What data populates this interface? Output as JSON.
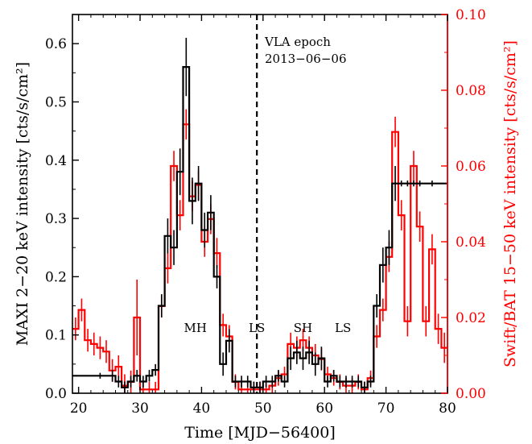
{
  "chart_data": {
    "type": "line",
    "xlabel": "Time [MJD−56400]",
    "ylabel_left": "MAXI 2−20 keV intensity [cts/s/cm²]",
    "ylabel_right": "Swift/BAT 15−50 keV intensity [cts/s/cm²]",
    "xlim": [
      19,
      80
    ],
    "ylim_left": [
      0,
      0.65
    ],
    "ylim_right": [
      0,
      0.1
    ],
    "x_ticks": [
      20,
      30,
      40,
      50,
      60,
      70,
      80
    ],
    "y_ticks_left": [
      0.0,
      0.1,
      0.2,
      0.3,
      0.4,
      0.5,
      0.6
    ],
    "y_ticks_right": [
      0.0,
      0.02,
      0.04,
      0.06,
      0.08,
      0.1
    ],
    "x_tick_labels": [
      "20",
      "30",
      "40",
      "50",
      "60",
      "70",
      "80"
    ],
    "y_tick_labels_left": [
      "0.0",
      "0.1",
      "0.2",
      "0.3",
      "0.4",
      "0.5",
      "0.6"
    ],
    "y_tick_labels_right": [
      "0.00",
      "0.02",
      "0.04",
      "0.06",
      "0.08",
      "0.10"
    ],
    "colors": {
      "maxi": "#000000",
      "bat": "#ff0000",
      "right_axis": "#ff0000"
    },
    "vline": {
      "x": 49,
      "label_line1": "VLA epoch",
      "label_line2": "2013−06−06"
    },
    "states": [
      {
        "label": "MH",
        "x": 39
      },
      {
        "label": "LS",
        "x": 49
      },
      {
        "label": "SH",
        "x": 56.5
      },
      {
        "label": "LS",
        "x": 63
      }
    ],
    "series": [
      {
        "name": "MAXI 2−20 keV",
        "axis": "left",
        "x": [
          23.5,
          25.5,
          26.5,
          27.5,
          28.5,
          29.5,
          30.5,
          31.5,
          32.5,
          33.5,
          34.5,
          35.5,
          36.5,
          37.5,
          38.5,
          39.5,
          40.5,
          41.5,
          42.5,
          43.5,
          44.5,
          45.5,
          46.5,
          47.5,
          48.5,
          49.5,
          50.5,
          51.5,
          52.5,
          53.5,
          54.5,
          55.5,
          56.5,
          57.5,
          58.5,
          59.5,
          60.5,
          61.5,
          62.5,
          63.5,
          64.5,
          65.5,
          66.5,
          67.5,
          68.5,
          69.5,
          70.5,
          71.5,
          72.5,
          73.5,
          74.5,
          75.5,
          77.5
        ],
        "y": [
          0.03,
          0.03,
          0.02,
          0.01,
          0.02,
          0.03,
          0.02,
          0.03,
          0.04,
          0.15,
          0.27,
          0.25,
          0.38,
          0.56,
          0.33,
          0.36,
          0.28,
          0.31,
          0.2,
          0.05,
          0.09,
          0.02,
          0.02,
          0.02,
          0.01,
          0.01,
          0.02,
          0.02,
          0.03,
          0.02,
          0.06,
          0.07,
          0.06,
          0.07,
          0.05,
          0.06,
          0.02,
          0.03,
          0.02,
          0.02,
          0.02,
          0.02,
          0.01,
          0.02,
          0.15,
          0.22,
          0.25,
          0.36,
          0.36,
          0.36,
          0.36,
          0.36,
          0.36
        ],
        "y_errors": [
          0.005,
          0.01,
          0.01,
          0.01,
          0.01,
          0.01,
          0.01,
          0.01,
          0.01,
          0.02,
          0.03,
          0.03,
          0.04,
          0.05,
          0.04,
          0.03,
          0.03,
          0.03,
          0.02,
          0.02,
          0.02,
          0.01,
          0.01,
          0.01,
          0.01,
          0.01,
          0.01,
          0.01,
          0.01,
          0.01,
          0.02,
          0.02,
          0.02,
          0.02,
          0.02,
          0.02,
          0.01,
          0.01,
          0.01,
          0.01,
          0.01,
          0.01,
          0.01,
          0.01,
          0.02,
          0.03,
          0.03,
          0.03,
          0.005,
          0.005,
          0.005,
          0.005,
          0.005
        ]
      },
      {
        "name": "Swift/BAT 15−50 keV",
        "axis": "right",
        "x": [
          19.5,
          20.5,
          21.5,
          22.5,
          23.5,
          24.5,
          25.5,
          26.5,
          27.5,
          28.5,
          29.5,
          30.5,
          31.5,
          32.5,
          33.5,
          34.5,
          35.5,
          36.5,
          37.5,
          38.5,
          39.5,
          40.5,
          41.5,
          42.5,
          43.5,
          44.5,
          45.5,
          46.5,
          47.5,
          48.5,
          49.5,
          50.5,
          51.5,
          52.5,
          53.5,
          54.5,
          55.5,
          56.5,
          57.5,
          58.5,
          59.5,
          60.5,
          61.5,
          62.5,
          63.5,
          64.5,
          65.5,
          66.5,
          67.5,
          68.5,
          69.5,
          70.5,
          71.5,
          72.5,
          73.5,
          74.5,
          75.5,
          76.5,
          77.5,
          78.5,
          79.5
        ],
        "y": [
          0.017,
          0.022,
          0.014,
          0.013,
          0.012,
          0.011,
          0.006,
          0.007,
          0.002,
          0.003,
          0.02,
          0.001,
          0.001,
          0.001,
          0.023,
          0.033,
          0.06,
          0.047,
          0.071,
          0.052,
          0.055,
          0.04,
          0.046,
          0.037,
          0.018,
          0.015,
          0.003,
          0.001,
          0.001,
          0.001,
          0.001,
          0.001,
          0.002,
          0.004,
          0.005,
          0.013,
          0.012,
          0.014,
          0.012,
          0.01,
          0.009,
          0.005,
          0.004,
          0.003,
          0.002,
          0.002,
          0.003,
          0.001,
          0.004,
          0.015,
          0.022,
          0.036,
          0.069,
          0.047,
          0.019,
          0.06,
          0.044,
          0.019,
          0.038,
          0.017,
          0.012
        ],
        "y_errors": [
          0.003,
          0.003,
          0.003,
          0.003,
          0.003,
          0.003,
          0.003,
          0.003,
          0.003,
          0.003,
          0.01,
          0.002,
          0.002,
          0.002,
          0.003,
          0.004,
          0.004,
          0.004,
          0.004,
          0.004,
          0.004,
          0.004,
          0.004,
          0.004,
          0.003,
          0.003,
          0.002,
          0.002,
          0.002,
          0.002,
          0.002,
          0.002,
          0.002,
          0.002,
          0.002,
          0.003,
          0.003,
          0.003,
          0.003,
          0.003,
          0.003,
          0.002,
          0.002,
          0.002,
          0.002,
          0.002,
          0.002,
          0.002,
          0.002,
          0.003,
          0.003,
          0.004,
          0.004,
          0.004,
          0.004,
          0.004,
          0.004,
          0.004,
          0.004,
          0.004,
          0.004
        ]
      }
    ]
  }
}
